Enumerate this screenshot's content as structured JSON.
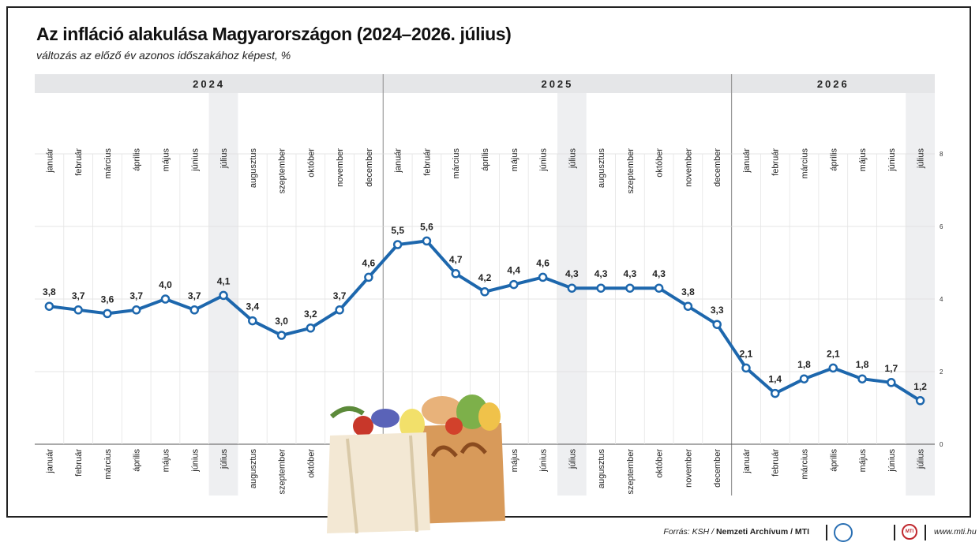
{
  "header": {
    "title": "Az infláció alakulása Magyarországon (2024–2026. július)",
    "subtitle": "változás az előző év azonos időszakához képest, %"
  },
  "chart_data": {
    "type": "line",
    "title": "Az infláció alakulása Magyarországon (2024–2026. július)",
    "subtitle": "változás az előző év azonos időszakához képest, %",
    "years": [
      {
        "label": "2024",
        "start": 0,
        "count": 12
      },
      {
        "label": "2025",
        "start": 12,
        "count": 12
      },
      {
        "label": "2026",
        "start": 24,
        "count": 7
      }
    ],
    "categories": [
      "január",
      "február",
      "március",
      "április",
      "május",
      "június",
      "július",
      "augusztus",
      "szeptember",
      "október",
      "november",
      "december",
      "január",
      "február",
      "március",
      "április",
      "május",
      "június",
      "július",
      "augusztus",
      "szeptember",
      "október",
      "november",
      "december",
      "január",
      "február",
      "március",
      "április",
      "május",
      "június",
      "július"
    ],
    "highlighted_months": [
      "július"
    ],
    "series": [
      {
        "values": [
          3.8,
          3.7,
          3.6,
          3.7,
          4.0,
          3.7,
          4.1,
          3.4,
          3.0,
          3.2,
          3.7,
          4.6,
          5.5,
          5.6,
          4.7,
          4.2,
          4.4,
          4.6,
          4.3,
          4.3,
          4.3,
          4.3,
          3.8,
          3.3,
          2.1,
          1.4,
          1.8,
          2.1,
          1.8,
          1.7,
          1.2
        ],
        "labels": [
          "3,8",
          "3,7",
          "3,6",
          "3,7",
          "4,0",
          "3,7",
          "4,1",
          "3,4",
          "3,0",
          "3,2",
          "3,7",
          "4,6",
          "5,5",
          "5,6",
          "4,7",
          "4,2",
          "4,4",
          "4,6",
          "4,3",
          "4,3",
          "4,3",
          "4,3",
          "3,8",
          "3,3",
          "2,1",
          "1,4",
          "1,8",
          "2,1",
          "1,8",
          "1,7",
          "1,2"
        ],
        "color": "#1d67ad"
      }
    ],
    "yticks": [
      "0",
      "2",
      "4",
      "6",
      "8"
    ],
    "ylim": [
      0,
      8
    ],
    "grid": true
  },
  "footer": {
    "source_prefix": "Forrás: KSH / ",
    "source_bold": "Nemzeti Archívum / MTI",
    "logo2_text": "MTI",
    "url": "www.mti.hu"
  }
}
